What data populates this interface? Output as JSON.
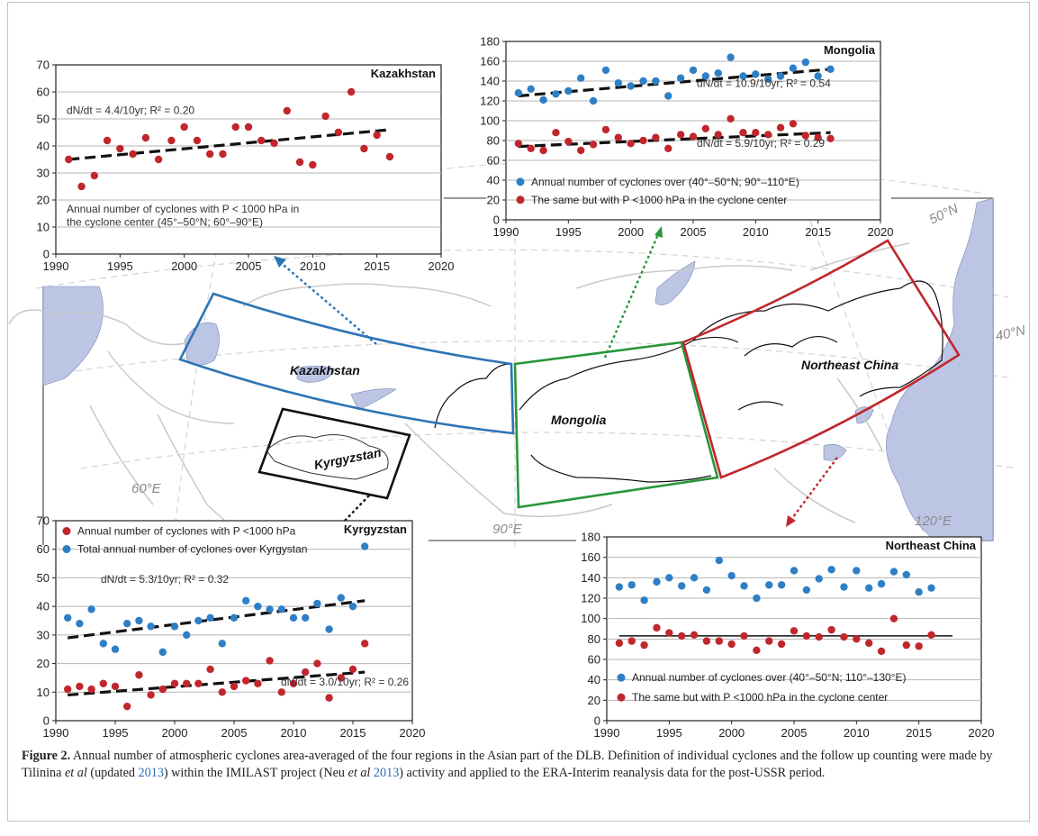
{
  "map": {
    "colors": {
      "kazakhstan": "#2e74b5",
      "mongolia": "#27963c",
      "northeast_china": "#c0272d",
      "kyrgyzstan": "#111111",
      "water": "#bcc6e4",
      "land_border": "#c9c9c9"
    },
    "labels": {
      "kazakhstan": "Kazakhstan",
      "mongolia": "Mongolia",
      "northeast_china": "Northeast China",
      "kyrgyzstan": "Kyrgyzstan",
      "lat_50": "50°N",
      "lat_40": "40°N",
      "lon_60": "60°E",
      "lon_90": "90°E",
      "lon_120": "120°E"
    }
  },
  "caption": {
    "label": "Figure 2.",
    "text_1": " Annual number of atmospheric cyclones area-averaged of the four regions in the Asian part of the DLB. Definition of individual cyclones and the follow up counting were made by Tilinina ",
    "etal_1": "et al",
    "text_2": " (updated ",
    "year_1": "2013",
    "text_3": ") within the IMILAST project (Neu ",
    "etal_2": "et al",
    "year_2": "2013",
    "text_4": ") activity and applied to the ERA-Interim reanalysis data for the post-USSR period."
  },
  "chart_data": [
    {
      "type": "scatter",
      "title": "Kazakhstan",
      "xlim": [
        1990,
        2020
      ],
      "ylim": [
        0,
        70
      ],
      "xticks": [
        1990,
        1995,
        2000,
        2005,
        2010,
        2015,
        2020
      ],
      "yticks": [
        0,
        10,
        20,
        30,
        40,
        50,
        60,
        70
      ],
      "grid": true,
      "series": [
        {
          "color": "#c0272d",
          "x": [
            1991,
            1992,
            1993,
            1994,
            1995,
            1996,
            1997,
            1998,
            1999,
            2000,
            2001,
            2002,
            2003,
            2004,
            2005,
            2006,
            2007,
            2008,
            2009,
            2010,
            2011,
            2012,
            2013,
            2014,
            2015,
            2016
          ],
          "y": [
            35,
            25,
            29,
            42,
            39,
            37,
            43,
            35,
            42,
            47,
            42,
            37,
            37,
            47,
            47,
            42,
            41,
            53,
            34,
            33,
            51,
            45,
            60,
            39,
            44,
            36
          ]
        }
      ],
      "trends": [
        {
          "x": [
            1991,
            2016
          ],
          "y": [
            35,
            46
          ],
          "style": "dashed"
        }
      ],
      "annotations": {
        "trend": "dN/dt = 4.4/10yr;  R² = 0.20",
        "note_1": "Annual number of cyclones with P < 1000 hPa in",
        "note_2": "the cyclone center (45°–50°N; 60°–90°E)"
      }
    },
    {
      "type": "scatter",
      "title": "Mongolia",
      "xlim": [
        1990,
        2020
      ],
      "ylim": [
        0,
        180
      ],
      "xticks": [
        1990,
        1995,
        2000,
        2005,
        2010,
        2015,
        2020
      ],
      "yticks": [
        0,
        20,
        40,
        60,
        80,
        100,
        120,
        140,
        160,
        180
      ],
      "grid": true,
      "series": [
        {
          "name": "Annual number of cyclones over (40°–50°N; 90°–110°E)",
          "color": "#2e7fc5",
          "x": [
            1991,
            1992,
            1993,
            1994,
            1995,
            1996,
            1997,
            1998,
            1999,
            2000,
            2001,
            2002,
            2003,
            2004,
            2005,
            2006,
            2007,
            2008,
            2009,
            2010,
            2011,
            2012,
            2013,
            2014,
            2015,
            2016
          ],
          "y": [
            128,
            132,
            121,
            127,
            130,
            143,
            120,
            151,
            138,
            135,
            140,
            140,
            125,
            143,
            151,
            145,
            148,
            164,
            145,
            147,
            142,
            145,
            153,
            159,
            145,
            152
          ]
        },
        {
          "name": "The same but with P <1000 hPa in the cyclone center",
          "color": "#c0272d",
          "x": [
            1991,
            1992,
            1993,
            1994,
            1995,
            1996,
            1997,
            1998,
            1999,
            2000,
            2001,
            2002,
            2003,
            2004,
            2005,
            2006,
            2007,
            2008,
            2009,
            2010,
            2011,
            2012,
            2013,
            2014,
            2015,
            2016
          ],
          "y": [
            77,
            72,
            70,
            88,
            79,
            70,
            76,
            91,
            83,
            77,
            80,
            83,
            72,
            86,
            84,
            92,
            86,
            102,
            88,
            88,
            86,
            93,
            97,
            85,
            83,
            82
          ]
        }
      ],
      "trends": [
        {
          "x": [
            1991,
            2016
          ],
          "y": [
            125,
            152
          ],
          "style": "dashed"
        },
        {
          "x": [
            1991,
            2016
          ],
          "y": [
            74,
            88
          ],
          "style": "dashed"
        }
      ],
      "annotations": {
        "trend_1": "dN/dt = 10.9/10yr;  R² = 0.54",
        "trend_2": "dN/dt = 5.9/10yr;  R² = 0.29"
      }
    },
    {
      "type": "scatter",
      "title": "Kyrgyzstan",
      "xlim": [
        1990,
        2020
      ],
      "ylim": [
        0,
        70
      ],
      "xticks": [
        1990,
        1995,
        2000,
        2005,
        2010,
        2015,
        2020
      ],
      "yticks": [
        0,
        10,
        20,
        30,
        40,
        50,
        60,
        70
      ],
      "grid": true,
      "series": [
        {
          "name": "Annual number of cyclones with P <1000 hPa",
          "color": "#c0272d",
          "x": [
            1991,
            1992,
            1993,
            1994,
            1995,
            1996,
            1997,
            1998,
            1999,
            2000,
            2001,
            2002,
            2003,
            2004,
            2005,
            2006,
            2007,
            2008,
            2009,
            2010,
            2011,
            2012,
            2013,
            2014,
            2015,
            2016
          ],
          "y": [
            11,
            12,
            11,
            13,
            12,
            5,
            16,
            9,
            11,
            13,
            13,
            13,
            18,
            10,
            12,
            14,
            13,
            21,
            10,
            13,
            17,
            20,
            8,
            15,
            18,
            27
          ]
        },
        {
          "name": "Total annual number of cyclones over Kyrgystan",
          "color": "#2e7fc5",
          "x": [
            1991,
            1992,
            1993,
            1994,
            1995,
            1996,
            1997,
            1998,
            1999,
            2000,
            2001,
            2002,
            2003,
            2004,
            2005,
            2006,
            2007,
            2008,
            2009,
            2010,
            2011,
            2012,
            2013,
            2014,
            2015,
            2016
          ],
          "y": [
            36,
            34,
            39,
            27,
            25,
            34,
            35,
            33,
            24,
            33,
            30,
            35,
            36,
            27,
            36,
            42,
            40,
            39,
            39,
            36,
            36,
            41,
            32,
            43,
            40,
            61
          ]
        }
      ],
      "trends": [
        {
          "x": [
            1991,
            2016
          ],
          "y": [
            29,
            42
          ],
          "style": "dashed"
        },
        {
          "x": [
            1991,
            2016
          ],
          "y": [
            9,
            17
          ],
          "style": "dashed"
        }
      ],
      "annotations": {
        "trend_1": "dN/dt = 5.3/10yr;  R² = 0.32",
        "trend_2": "dN/dt = 3.0/10yr;  R² = 0.26"
      }
    },
    {
      "type": "scatter",
      "title": "Northeast China",
      "xlim": [
        1990,
        2020
      ],
      "ylim": [
        0,
        180
      ],
      "xticks": [
        1990,
        1995,
        2000,
        2005,
        2010,
        2015,
        2020
      ],
      "yticks": [
        0,
        20,
        40,
        60,
        80,
        100,
        120,
        140,
        160,
        180
      ],
      "grid": true,
      "series": [
        {
          "name": "Annual number of cyclones over (40°–50°N; 110°–130°E)",
          "color": "#2e7fc5",
          "x": [
            1991,
            1992,
            1993,
            1994,
            1995,
            1996,
            1997,
            1998,
            1999,
            2000,
            2001,
            2002,
            2003,
            2004,
            2005,
            2006,
            2007,
            2008,
            2009,
            2010,
            2011,
            2012,
            2013,
            2014,
            2015,
            2016
          ],
          "y": [
            131,
            133,
            118,
            136,
            140,
            132,
            140,
            128,
            157,
            142,
            132,
            120,
            133,
            133,
            147,
            128,
            139,
            148,
            131,
            147,
            130,
            134,
            146,
            143,
            126,
            130
          ]
        },
        {
          "name": "The same but with P <1000 hPa in the cyclone center",
          "color": "#c0272d",
          "x": [
            1991,
            1992,
            1993,
            1994,
            1995,
            1996,
            1997,
            1998,
            1999,
            2000,
            2001,
            2002,
            2003,
            2004,
            2005,
            2006,
            2007,
            2008,
            2009,
            2010,
            2011,
            2012,
            2013,
            2014,
            2015,
            2016
          ],
          "y": [
            76,
            78,
            74,
            91,
            86,
            83,
            84,
            78,
            78,
            75,
            83,
            69,
            78,
            75,
            88,
            83,
            82,
            89,
            82,
            80,
            76,
            68,
            100,
            74,
            73,
            84
          ]
        }
      ],
      "trends": [
        {
          "x": [
            1991,
            2017.7
          ],
          "y": [
            83,
            83
          ],
          "style": "solid"
        }
      ]
    }
  ]
}
